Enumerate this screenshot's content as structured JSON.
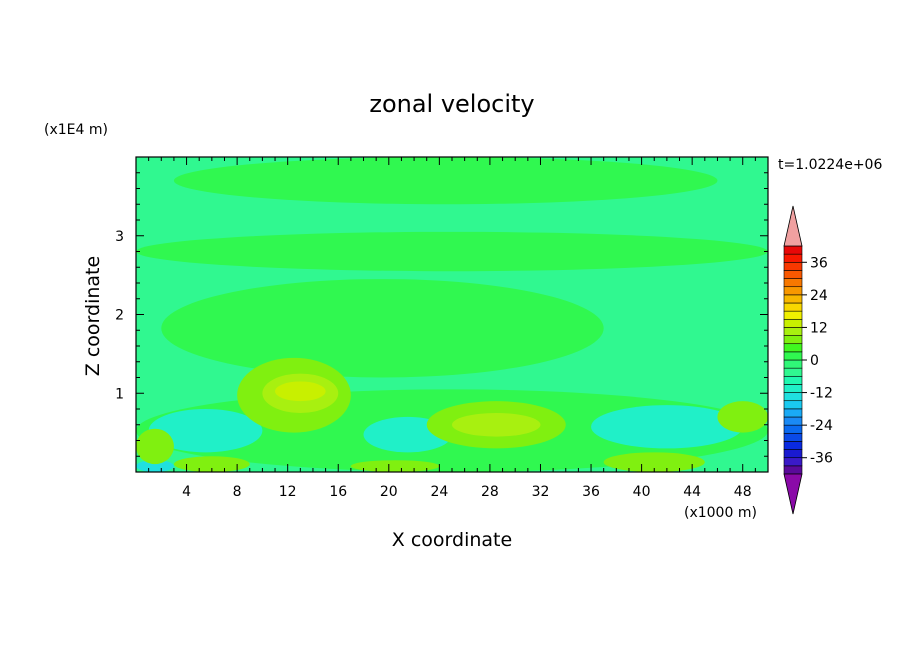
{
  "chart_data": {
    "type": "heatmap",
    "title": "zonal velocity",
    "xlabel": "X coordinate",
    "ylabel": "Z coordinate",
    "x_unit": "(x1000 m)",
    "y_unit": "(x1E4 m)",
    "time_label": "t=1.0224e+06",
    "xlim": [
      0,
      50
    ],
    "ylim": [
      0,
      4
    ],
    "x_ticks": [
      4,
      8,
      12,
      16,
      20,
      24,
      28,
      32,
      36,
      40,
      44,
      48
    ],
    "y_ticks": [
      1,
      2,
      3
    ],
    "colorbar": {
      "labels": [
        36,
        24,
        12,
        0,
        -12,
        -24,
        -36
      ],
      "levels": [
        -42,
        -39,
        -36,
        -33,
        -30,
        -27,
        -24,
        -21,
        -18,
        -15,
        -12,
        -9,
        -6,
        -3,
        0,
        3,
        6,
        9,
        12,
        15,
        18,
        21,
        24,
        27,
        30,
        33,
        36,
        39,
        42
      ],
      "colors": [
        "#5a0a9a",
        "#3a1ac8",
        "#1a1ad0",
        "#0a2ae0",
        "#0a4ae8",
        "#0a6af0",
        "#1a8af5",
        "#1aaaf5",
        "#1acaf0",
        "#20e0e0",
        "#20f0c8",
        "#20f8b0",
        "#30f890",
        "#30f878",
        "#30f850",
        "#40f820",
        "#80f010",
        "#a8f010",
        "#c8f000",
        "#f0f000",
        "#f8d800",
        "#f8b800",
        "#f89800",
        "#f87800",
        "#f85800",
        "#f83800",
        "#f81800",
        "#e80808"
      ],
      "under_color": "#8a0aa8",
      "over_color": "#f0a0a0"
    },
    "field_colors": {
      "background": "#30f890",
      "zero_band": "#30f850",
      "weak_negative": "#20f0c8",
      "negative": "#20e0e0",
      "weak_positive": "#80f010",
      "positive": "#a8f010",
      "strong_positive": "#c8f000"
    },
    "regions": [
      {
        "level": "zero_band",
        "x": [
          3,
          46
        ],
        "z": [
          3.4,
          4.0
        ]
      },
      {
        "level": "zero_band",
        "x": [
          0,
          50
        ],
        "z": [
          2.55,
          3.05
        ]
      },
      {
        "level": "zero_band",
        "x": [
          2,
          37
        ],
        "z": [
          1.2,
          2.45
        ]
      },
      {
        "level": "zero_band",
        "x": [
          0,
          50
        ],
        "z": [
          0,
          1.05
        ]
      },
      {
        "level": "weak_negative",
        "x": [
          1,
          10
        ],
        "z": [
          0.25,
          0.8
        ]
      },
      {
        "level": "weak_negative",
        "x": [
          18,
          25
        ],
        "z": [
          0.25,
          0.7
        ]
      },
      {
        "level": "weak_negative",
        "x": [
          36,
          48
        ],
        "z": [
          0.3,
          0.85
        ]
      },
      {
        "level": "negative",
        "x": [
          0,
          3
        ],
        "z": [
          0,
          0.15
        ]
      },
      {
        "level": "weak_positive",
        "x": [
          8,
          17
        ],
        "z": [
          0.5,
          1.45
        ]
      },
      {
        "level": "positive",
        "x": [
          10,
          16
        ],
        "z": [
          0.75,
          1.25
        ]
      },
      {
        "level": "strong_positive",
        "x": [
          11,
          15
        ],
        "z": [
          0.9,
          1.15
        ]
      },
      {
        "level": "weak_positive",
        "x": [
          23,
          34
        ],
        "z": [
          0.3,
          0.9
        ]
      },
      {
        "level": "positive",
        "x": [
          25,
          32
        ],
        "z": [
          0.45,
          0.75
        ]
      },
      {
        "level": "weak_positive",
        "x": [
          0,
          3
        ],
        "z": [
          0.1,
          0.55
        ]
      },
      {
        "level": "weak_positive",
        "x": [
          46,
          50
        ],
        "z": [
          0.5,
          0.9
        ]
      },
      {
        "level": "weak_positive",
        "x": [
          3,
          9
        ],
        "z": [
          0,
          0.2
        ]
      },
      {
        "level": "weak_positive",
        "x": [
          17,
          24
        ],
        "z": [
          0,
          0.15
        ]
      },
      {
        "level": "weak_positive",
        "x": [
          37,
          45
        ],
        "z": [
          0,
          0.25
        ]
      }
    ]
  }
}
